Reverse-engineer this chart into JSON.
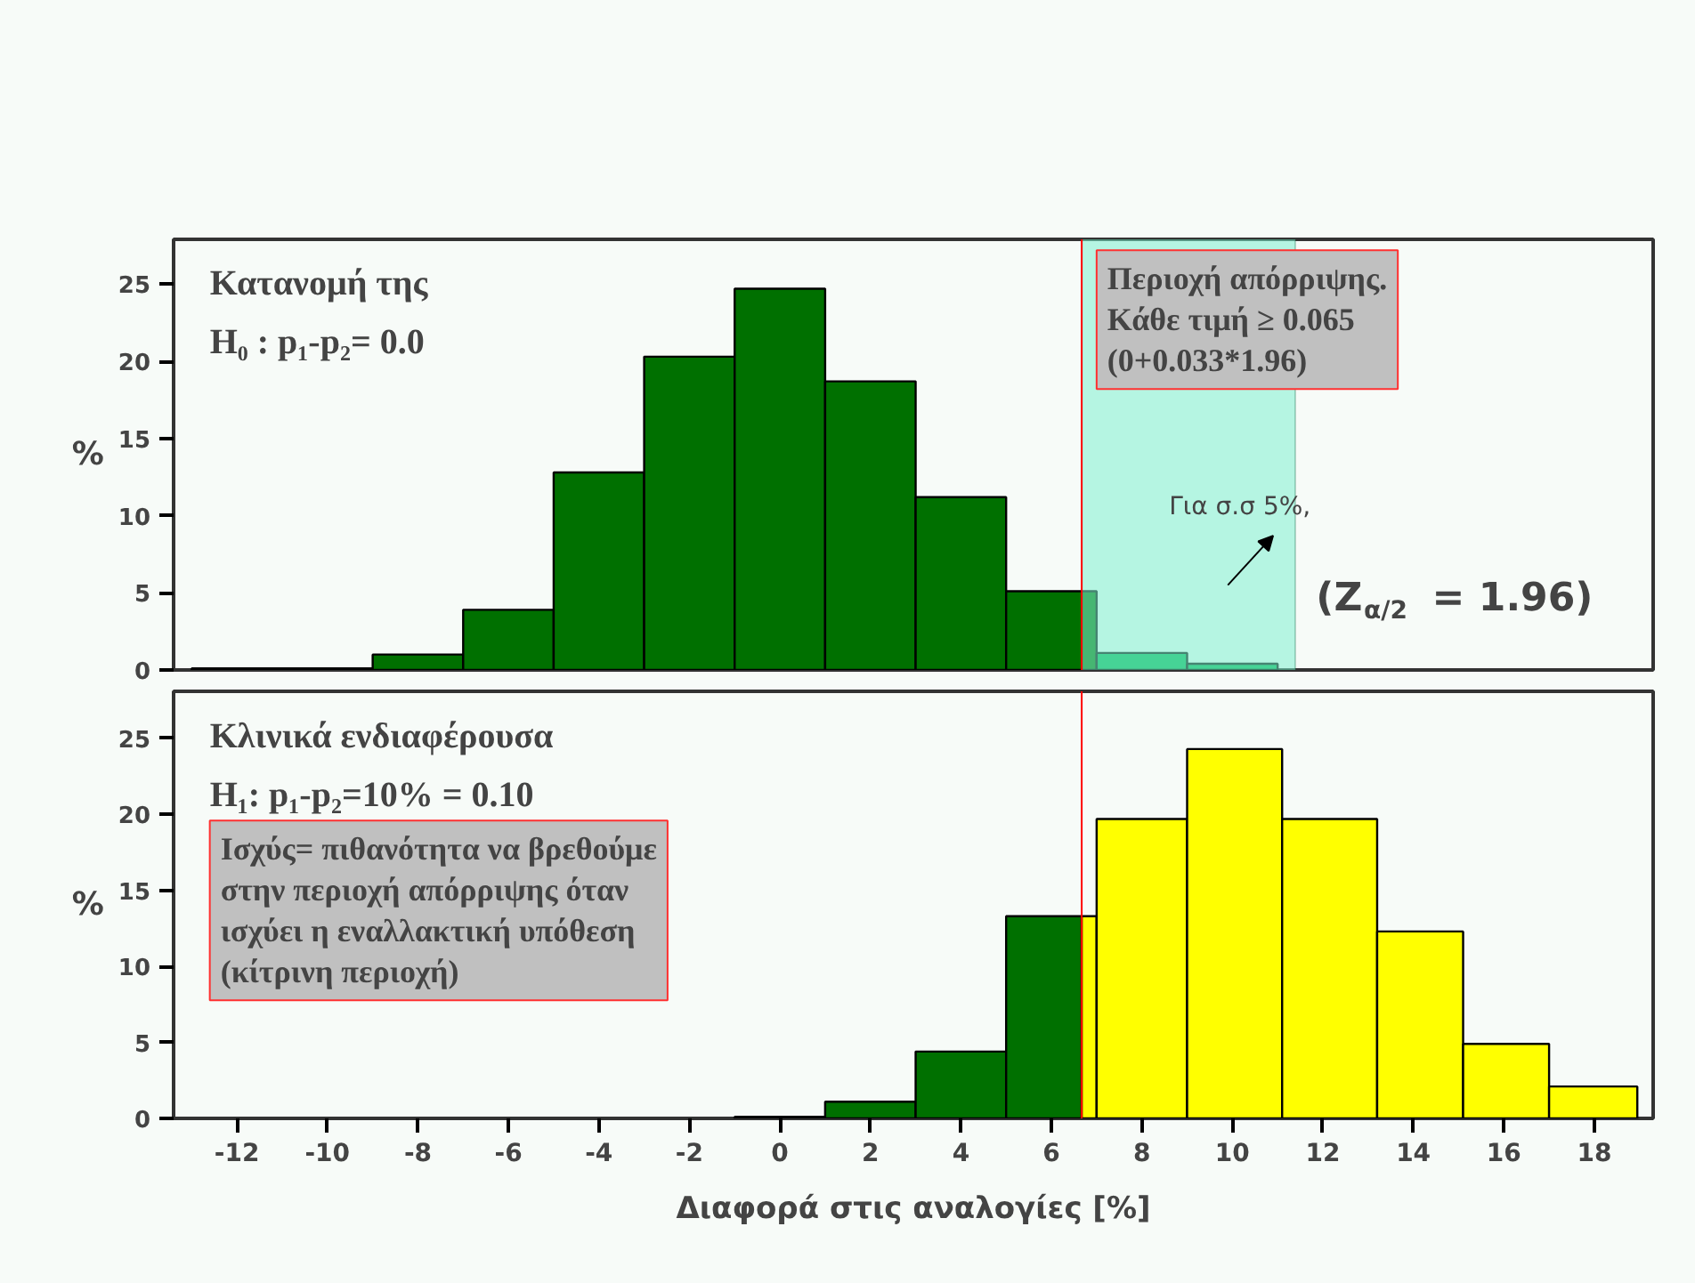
{
  "chart_data": [
    {
      "type": "histogram",
      "ylabel": "%",
      "xlim": [
        -13.4,
        19.3
      ],
      "ylim": [
        0,
        27.9
      ],
      "xticks": [
        -12,
        -10,
        -8,
        -6,
        -4,
        -2,
        0,
        2,
        4,
        6,
        8,
        10,
        12,
        14,
        16,
        18
      ],
      "yticks": [
        0,
        5,
        10,
        15,
        20,
        25
      ],
      "grid": false,
      "tick_labels": "y",
      "bins": [
        -13,
        -9,
        -7,
        -5,
        -3,
        -1,
        1,
        3,
        5,
        7,
        9,
        11
      ],
      "values": [
        0.1,
        1.0,
        3.9,
        12.8,
        20.3,
        24.7,
        18.7,
        11.2,
        5.1,
        1.1,
        0.4
      ],
      "colors": [
        "#007000",
        "#007000",
        "#007000",
        "#007000",
        "#007000",
        "#007000",
        "#007000",
        "#007000",
        "#007000",
        "#00b050",
        "#00b050"
      ],
      "bands": [
        {
          "axis": "x",
          "from": 6.67,
          "to": 11.39,
          "color": "#80f0d0"
        }
      ],
      "ref_lines": [
        {
          "axis": "x",
          "value": 6.67,
          "color": "#ff0000"
        }
      ],
      "annotations": [
        "Κατανομή της\nH₀ : p₁-p₂= 0.0",
        "Περιοχή απόρριψης.\nΚάθε τιμή ≥ 0.065\n(0+0.033*1.96)",
        "Για σ.σ 5%,",
        "(Z$_{α/2}$ = 1.96)"
      ]
    },
    {
      "type": "histogram",
      "ylabel": "%",
      "xlabel": "Διαφορά στις αναλογίες [%]",
      "xlim": [
        -13.4,
        19.3
      ],
      "ylim": [
        0,
        28.1
      ],
      "xticks": [
        -12,
        -10,
        -8,
        -6,
        -4,
        -2,
        0,
        2,
        4,
        6,
        8,
        10,
        12,
        14,
        16,
        18
      ],
      "yticks": [
        0,
        5,
        10,
        15,
        20,
        25
      ],
      "grid": false,
      "bins": [
        -1,
        1,
        3,
        5,
        6.67,
        7,
        9,
        11.1,
        13.2,
        15.1,
        17,
        18.95
      ],
      "values": [
        0.1,
        1.1,
        4.4,
        13.3,
        13.3,
        19.7,
        24.3,
        19.7,
        12.3,
        4.9,
        2.1
      ],
      "colors": [
        "#007000",
        "#007000",
        "#007000",
        "#007000",
        "#ffff00",
        "#ffff00",
        "#ffff00",
        "#ffff00",
        "#ffff00",
        "#ffff00",
        "#ffff00"
      ],
      "ref_lines": [
        {
          "axis": "x",
          "value": 6.67,
          "color": "#ff0000"
        }
      ],
      "annotations": [
        "Κλινικά ενδιαφέρουσα\nH₁: p₁-p₂=10% = 0.10",
        "Ισχύς= πιθανότητα να βρεθούμε\nστην περιοχή απόρριψης όταν\nισχύει η εναλλακτική υπόθεση\n(κίτρινη περιοχή)"
      ]
    }
  ]
}
